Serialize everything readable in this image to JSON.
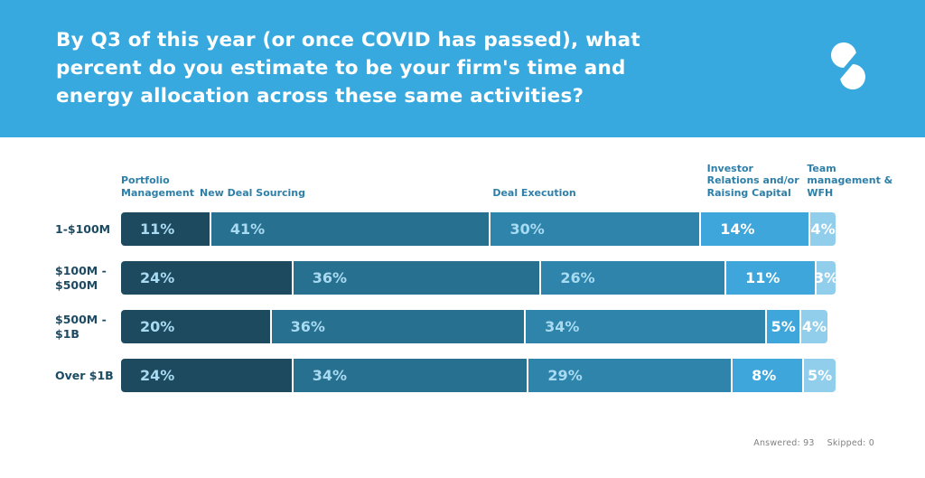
{
  "header": {
    "title_lines": [
      "By Q3 of this year (or once COVID has passed), what",
      "percent do you estimate to be your firm's time and",
      "energy allocation across these same activities?"
    ],
    "logo_icon": "s-logo"
  },
  "colors": {
    "page_bg": "#ffffff",
    "header_bg": "#38a9de",
    "row_label": "#1d4a63",
    "column_header": "#2e7fa8",
    "bar_text_on_dark": "#a8dbf2",
    "bar_text_on_light": "#ffffff",
    "footer_text": "#818181",
    "logo": "#ffffff"
  },
  "chart_data": {
    "type": "bar",
    "stacked": true,
    "orientation": "horizontal",
    "value_suffix": "%",
    "xlim": [
      0,
      100
    ],
    "grid": false,
    "legend_position": "column-headers-top",
    "categories": [
      {
        "label": "1-$100M",
        "label_lines": [
          "1-$100M"
        ]
      },
      {
        "label": "$100M - $500M",
        "label_lines": [
          "$100M -",
          "$500M"
        ]
      },
      {
        "label": "$500M - $1B",
        "label_lines": [
          "$500M -",
          "$1B"
        ]
      },
      {
        "label": "Over $1B",
        "label_lines": [
          "Over $1B"
        ]
      }
    ],
    "series": [
      {
        "name": "Portfolio Management",
        "header_lines": [
          "Portfolio",
          "Management"
        ],
        "color": "#1d4a5e",
        "values": [
          11,
          24,
          20,
          24
        ]
      },
      {
        "name": "New Deal Sourcing",
        "header_lines": [
          "New Deal Sourcing"
        ],
        "color": "#27708f",
        "values": [
          41,
          36,
          36,
          34
        ]
      },
      {
        "name": "Deal Execution",
        "header_lines": [
          "Deal Execution"
        ],
        "color": "#2e84aa",
        "values": [
          30,
          26,
          34,
          29
        ]
      },
      {
        "name": "Investor Relations and/or Raising Capital",
        "header_lines": [
          "Investor",
          "Relations and/or",
          "Raising Capital"
        ],
        "color": "#3ea6db",
        "values": [
          14,
          11,
          5,
          8
        ]
      },
      {
        "name": "Team management & WFH",
        "header_lines": [
          "Team",
          "management &",
          "WFH"
        ],
        "color": "#90ceec",
        "values": [
          4,
          3,
          4,
          5
        ]
      }
    ]
  },
  "footer": {
    "answered": "Answered: 93",
    "skipped": "Skipped: 0"
  }
}
